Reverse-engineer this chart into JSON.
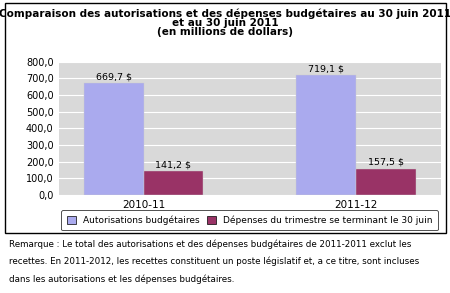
{
  "title_line1": "Comparaison des autorisations et des dépenses budgétaires au 30 juin 2011",
  "title_line2": "et au 30 juin 2011",
  "title_line3": "(en millions de dollars)",
  "categories": [
    "2010-11",
    "2011-12"
  ],
  "autorisations": [
    669.7,
    719.1
  ],
  "depenses": [
    141.2,
    157.5
  ],
  "autorisations_labels": [
    "669,7 $",
    "719,1 $"
  ],
  "depenses_labels": [
    "141,2 $",
    "157,5 $"
  ],
  "color_autorisations": "#aaaaee",
  "color_depenses": "#993366",
  "ylim": [
    0,
    800
  ],
  "yticks": [
    0,
    100,
    200,
    300,
    400,
    500,
    600,
    700,
    800
  ],
  "ytick_labels": [
    "0,0",
    "100,0",
    "200,0",
    "300,0",
    "400,0",
    "500,0",
    "600,0",
    "700,0",
    "800,0"
  ],
  "legend_label1": "Autorisations budgétaires",
  "legend_label2": "Dépenses du trimestre se terminant le 30 juin",
  "note_line1": "Remarque : Le total des autorisations et des dépenses budgétaires de 2011-2011 exclut les",
  "note_line2": "recettes. En 2011-2012, les recettes constituent un poste législatif et, a ce titre, sont incluses",
  "note_line3": "dans les autorisations et les dépenses budgétaires.",
  "chart_bg": "#d9d9d9",
  "outer_bg": "#ffffff",
  "bar_width": 0.28,
  "title_fontsize": 7.5,
  "bar_label_fontsize": 6.8,
  "ytick_fontsize": 7.0,
  "xtick_fontsize": 7.5,
  "legend_fontsize": 6.5,
  "note_fontsize": 6.3
}
